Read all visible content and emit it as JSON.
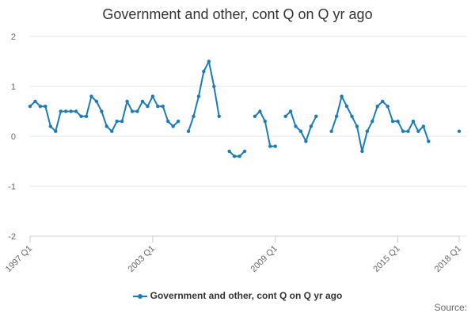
{
  "chart_data": {
    "type": "line",
    "title": "Government and other, cont Q on Q yr ago",
    "xlabel": "",
    "ylabel": "",
    "ylim": [
      -2,
      2
    ],
    "yticks": [
      "2",
      "1",
      "0",
      "-1",
      "-2"
    ],
    "xticks": [
      "1997 Q1",
      "2003 Q1",
      "2009 Q1",
      "2015 Q1",
      "2018 Q1"
    ],
    "grid": true,
    "legend_position": "bottom",
    "color": "#1c7cb4",
    "series": [
      {
        "name": "Government and other, cont Q on Q yr ago",
        "x": [
          "1997 Q1",
          "1997 Q2",
          "1997 Q3",
          "1997 Q4",
          "1998 Q1",
          "1998 Q2",
          "1998 Q3",
          "1998 Q4",
          "1999 Q1",
          "1999 Q2",
          "1999 Q3",
          "1999 Q4",
          "2000 Q1",
          "2000 Q2",
          "2000 Q3",
          "2000 Q4",
          "2001 Q1",
          "2001 Q2",
          "2001 Q3",
          "2001 Q4",
          "2002 Q1",
          "2002 Q2",
          "2002 Q3",
          "2002 Q4",
          "2003 Q1",
          "2003 Q2",
          "2003 Q3",
          "2003 Q4",
          "2004 Q1",
          "2004 Q2",
          "2004 Q3",
          "2004 Q4",
          "2005 Q1",
          "2005 Q2",
          "2005 Q3",
          "2005 Q4",
          "2006 Q1",
          "2006 Q2",
          "2006 Q3",
          "2006 Q4",
          "2007 Q1",
          "2007 Q2",
          "2007 Q3",
          "2007 Q4",
          "2008 Q1",
          "2008 Q2",
          "2008 Q3",
          "2008 Q4",
          "2009 Q1",
          "2009 Q2",
          "2009 Q3",
          "2009 Q4",
          "2010 Q1",
          "2010 Q2",
          "2010 Q3",
          "2010 Q4",
          "2011 Q1",
          "2011 Q2",
          "2011 Q3",
          "2011 Q4",
          "2012 Q1",
          "2012 Q2",
          "2012 Q3",
          "2012 Q4",
          "2013 Q1",
          "2013 Q2",
          "2013 Q3",
          "2013 Q4",
          "2014 Q1",
          "2014 Q2",
          "2014 Q3",
          "2014 Q4",
          "2015 Q1",
          "2015 Q2",
          "2015 Q3",
          "2015 Q4",
          "2016 Q1",
          "2016 Q2",
          "2016 Q3",
          "2016 Q4",
          "2017 Q1",
          "2017 Q2",
          "2017 Q3",
          "2017 Q4",
          "2018 Q1"
        ],
        "values": [
          0.6,
          0.7,
          0.6,
          0.6,
          0.2,
          0.1,
          0.5,
          0.5,
          0.5,
          0.5,
          0.4,
          0.4,
          0.8,
          0.7,
          0.5,
          0.2,
          0.1,
          0.3,
          0.3,
          0.7,
          0.5,
          0.5,
          0.7,
          0.6,
          0.8,
          0.6,
          0.6,
          0.3,
          0.2,
          0.3,
          null,
          0.1,
          0.4,
          0.8,
          1.3,
          1.5,
          1.0,
          0.4,
          null,
          -0.3,
          -0.4,
          -0.4,
          -0.3,
          null,
          0.4,
          0.5,
          0.3,
          -0.2,
          -0.2,
          null,
          0.4,
          0.5,
          0.2,
          0.1,
          -0.1,
          0.2,
          0.4,
          null,
          null,
          0.1,
          0.4,
          0.8,
          0.6,
          0.4,
          0.2,
          -0.3,
          0.1,
          0.3,
          0.6,
          0.7,
          0.6,
          0.3,
          0.3,
          0.1,
          0.1,
          0.3,
          0.1,
          0.2,
          -0.1,
          null,
          null,
          null,
          null,
          null,
          0.1
        ]
      }
    ]
  },
  "source_label": "Source:"
}
